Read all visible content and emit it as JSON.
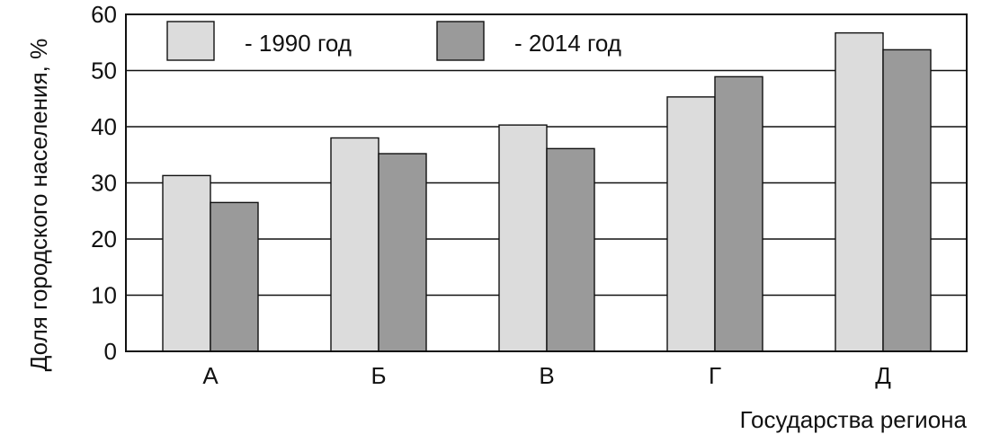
{
  "chart_data": {
    "type": "bar",
    "title": "",
    "xlabel": "Государства региона",
    "ylabel": "Доля городского населения, %",
    "categories": [
      "А",
      "Б",
      "В",
      "Г",
      "Д"
    ],
    "series": [
      {
        "name": "- 1990 год",
        "color": "#dcdcdc",
        "values": [
          31.3,
          38.0,
          40.3,
          45.3,
          56.7
        ]
      },
      {
        "name": "- 2014 год",
        "color": "#9a9a9a",
        "values": [
          26.5,
          35.2,
          36.1,
          48.9,
          53.7
        ]
      }
    ],
    "ylim": [
      0,
      60
    ],
    "yticks": [
      0,
      10,
      20,
      30,
      40,
      50,
      60
    ],
    "grid": true,
    "legend_position": "top-left"
  }
}
